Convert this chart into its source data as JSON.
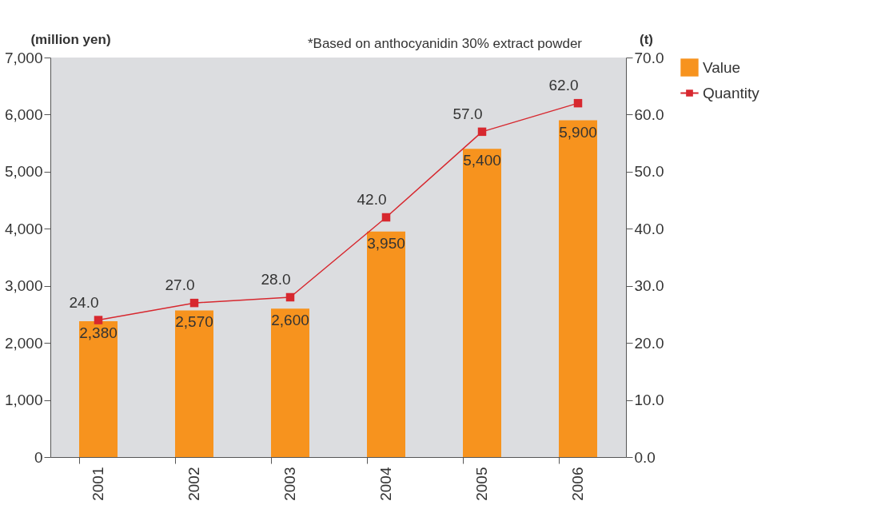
{
  "chart_data": {
    "type": "bar",
    "categories": [
      "2001",
      "2002",
      "2003",
      "2004",
      "2005",
      "2006"
    ],
    "series": [
      {
        "name": "Value",
        "color": "#f7931e",
        "values": [
          2380,
          2570,
          2600,
          3950,
          5400,
          5900
        ],
        "value_labels": [
          "2,380",
          "2,570",
          "2,600",
          "3,950",
          "5,400",
          "5,900"
        ]
      },
      {
        "name": "Quantity",
        "type": "line",
        "axis": "y2",
        "color": "#d7282f",
        "marker": "square",
        "values": [
          24.0,
          27.0,
          28.0,
          42.0,
          57.0,
          62.0
        ],
        "value_labels": [
          "24.0",
          "27.0",
          "28.0",
          "42.0",
          "57.0",
          "62.0"
        ]
      }
    ],
    "ylabel": "(million yen)",
    "y2label": "(t)",
    "annotations": [
      "*Based on anthocyanidin 30% extract powder"
    ],
    "ylim": [
      0,
      7000
    ],
    "yticks": [
      {
        "value": 0,
        "label": "0"
      },
      {
        "value": 1000,
        "label": "1,000"
      },
      {
        "value": 2000,
        "label": "2,000"
      },
      {
        "value": 3000,
        "label": "3,000"
      },
      {
        "value": 4000,
        "label": "4,000"
      },
      {
        "value": 5000,
        "label": "5,000"
      },
      {
        "value": 6000,
        "label": "6,000"
      },
      {
        "value": 7000,
        "label": "7,000"
      }
    ],
    "y2lim": [
      0,
      70
    ],
    "y2ticks": [
      {
        "value": 0,
        "label": "0.0"
      },
      {
        "value": 10,
        "label": "10.0"
      },
      {
        "value": 20,
        "label": "20.0"
      },
      {
        "value": 30,
        "label": "30.0"
      },
      {
        "value": 40,
        "label": "40.0"
      },
      {
        "value": 50,
        "label": "50.0"
      },
      {
        "value": 60,
        "label": "60.0"
      },
      {
        "value": 70,
        "label": "70.0"
      }
    ],
    "grid": false,
    "legend": "right"
  }
}
